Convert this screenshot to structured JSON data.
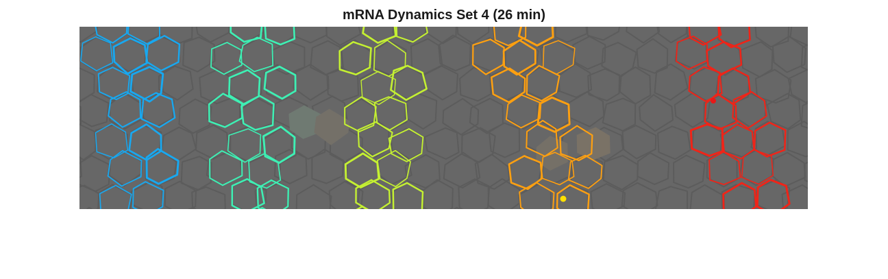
{
  "title": "mRNA Dynamics Set 4 (26 min)",
  "image": {
    "description_name": "tissue-membrane-image",
    "background_color": "#676767",
    "cell_outline_color": "#5c5c5c"
  },
  "stripes": [
    {
      "name": "stripe-1",
      "color": "#18a8f0"
    },
    {
      "name": "stripe-2",
      "color": "#3ef0b4"
    },
    {
      "name": "stripe-3",
      "color": "#c4f032"
    },
    {
      "name": "stripe-4",
      "color": "#ffa010"
    },
    {
      "name": "stripe-5",
      "color": "#f02418"
    }
  ],
  "markers": [
    {
      "name": "marker-yellow",
      "color": "#ffe000"
    },
    {
      "name": "marker-red",
      "color": "#e81818"
    }
  ]
}
